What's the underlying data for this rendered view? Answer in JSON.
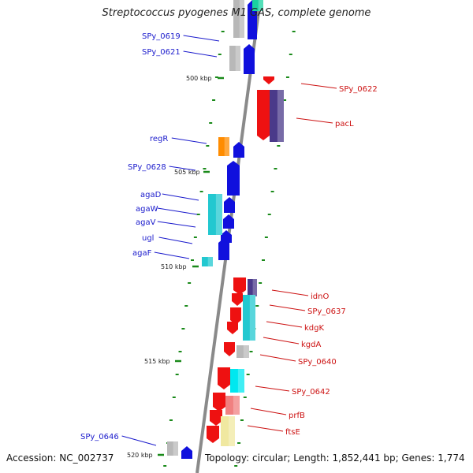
{
  "title": "Streptococcus pyogenes M1 GAS, complete genome",
  "accession_text": "Accession: NC_002737",
  "summary_text": "Topology: circular; Length: 1,852,441 bp; Genes: 1,774",
  "colors": {
    "backbone": "#8a8a8a",
    "forward_cds": "#1010dd",
    "reverse_cds": "#ee1111",
    "left_label": "#1a1acc",
    "right_label": "#cc1111",
    "tick": "#1a8a1a",
    "highlight_cyan": "#22c8d0",
    "highlight_gray": "#b8b8b8",
    "highlight_orange": "#ff8c00",
    "highlight_navy": "#4a3a8a",
    "highlight_pink": "#f08080",
    "highlight_cream": "#f0e8a0"
  },
  "scale_labels": [
    "500 kbp",
    "505 kbp",
    "510 kbp",
    "515 kbp",
    "520 kbp"
  ],
  "left_labels": [
    "SPy_0619",
    "SPy_0621",
    "regR",
    "SPy_0628",
    "agaD",
    "agaW",
    "agaV",
    "ugl",
    "agaF",
    "SPy_0646"
  ],
  "right_labels": [
    "SPy_0622",
    "pacL",
    "idnO",
    "SPy_0637",
    "kdgK",
    "kgdA",
    "SPy_0640",
    "SPy_0642",
    "prfB",
    "ftsE"
  ]
}
